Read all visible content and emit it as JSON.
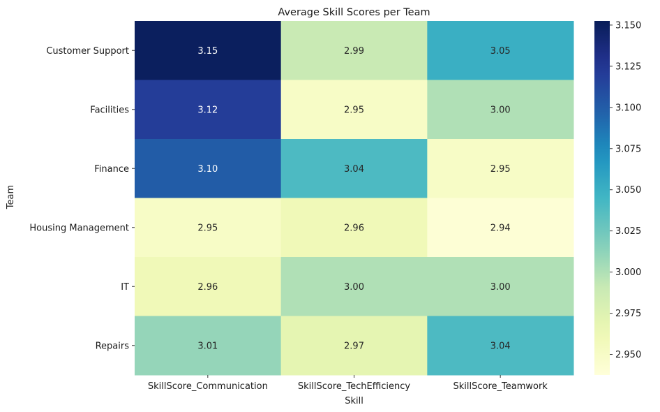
{
  "chart_data": {
    "type": "heatmap",
    "title": "Average Skill Scores per Team",
    "xlabel": "Skill",
    "ylabel": "Team",
    "columns": [
      "SkillScore_Communication",
      "SkillScore_TechEfficiency",
      "SkillScore_Teamwork"
    ],
    "rows": [
      "Customer Support",
      "Facilities",
      "Finance",
      "Housing Management",
      "IT",
      "Repairs"
    ],
    "values": [
      [
        3.15,
        2.99,
        3.05
      ],
      [
        3.12,
        2.95,
        3.0
      ],
      [
        3.1,
        3.04,
        2.95
      ],
      [
        2.95,
        2.96,
        2.94
      ],
      [
        2.96,
        3.0,
        3.0
      ],
      [
        3.01,
        2.97,
        3.04
      ]
    ],
    "value_labels": [
      [
        "3.15",
        "2.99",
        "3.05"
      ],
      [
        "3.12",
        "2.95",
        "3.00"
      ],
      [
        "3.10",
        "3.04",
        "2.95"
      ],
      [
        "2.95",
        "2.96",
        "2.94"
      ],
      [
        "2.96",
        "3.00",
        "3.00"
      ],
      [
        "3.01",
        "2.97",
        "3.04"
      ]
    ],
    "colorscale": "YlGnBu",
    "vmin": 2.9375,
    "vmax": 3.1525,
    "colorbar_ticks": [
      2.95,
      2.975,
      3.0,
      3.025,
      3.05,
      3.075,
      3.1,
      3.125,
      3.15
    ],
    "colorbar_tick_labels": [
      "2.950",
      "2.975",
      "3.000",
      "3.025",
      "3.050",
      "3.075",
      "3.100",
      "3.125",
      "3.150"
    ]
  }
}
